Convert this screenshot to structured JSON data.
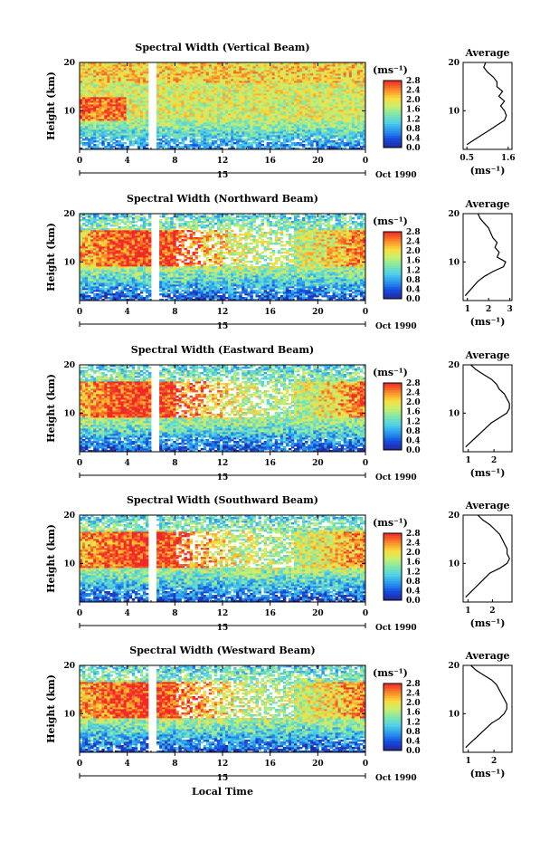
{
  "figure": {
    "xlabel": "Local Time",
    "ylabel": "Height (km)",
    "date_label": "Oct 1990",
    "day_label": "15",
    "colorbar_unit": "(ms⁻¹)",
    "colorbar_ticks": [
      "0.0",
      "0.4",
      "0.8",
      "1.2",
      "1.6",
      "2.0",
      "2.4",
      "2.8"
    ],
    "profile_title": "Average",
    "profile_unit": "(ms⁻¹)",
    "x_ticks": [
      "0",
      "4",
      "8",
      "12",
      "16",
      "20",
      "0"
    ],
    "y_ticks": [
      "10",
      "20"
    ]
  },
  "chart_data": [
    {
      "type": "heatmap",
      "title": "Spectral Width (Vertical Beam)",
      "xlim": [
        0,
        24
      ],
      "ylim": [
        2,
        20
      ],
      "clim": [
        0.0,
        2.8
      ],
      "data_gap_hours": [
        5.8,
        6.3
      ],
      "regime": "vertical",
      "profile": {
        "type": "line",
        "title": "Average",
        "xticks": [
          "0.5",
          "1.6"
        ],
        "xlim": [
          0.4,
          1.7
        ],
        "height_km": [
          3,
          4,
          5,
          6,
          7,
          8,
          9,
          10,
          11,
          12,
          13,
          14,
          15,
          16,
          17,
          18,
          19,
          20
        ],
        "width_ms": [
          0.5,
          0.7,
          0.9,
          1.1,
          1.3,
          1.5,
          1.55,
          1.5,
          1.4,
          1.5,
          1.35,
          1.45,
          1.3,
          1.3,
          1.2,
          1.05,
          0.95,
          1.0
        ]
      }
    },
    {
      "type": "heatmap",
      "title": "Spectral Width (Northward Beam)",
      "xlim": [
        0,
        24
      ],
      "ylim": [
        2,
        20
      ],
      "clim": [
        0.0,
        2.8
      ],
      "data_gap_hours": [
        6.0,
        6.5
      ],
      "regime": "oblique",
      "profile": {
        "type": "line",
        "title": "Average",
        "xticks": [
          "1",
          "2",
          "3"
        ],
        "xlim": [
          0.8,
          3.1
        ],
        "height_km": [
          3,
          4,
          5,
          6,
          7,
          8,
          9,
          10,
          11,
          12,
          13,
          14,
          15,
          16,
          17,
          18,
          19,
          20
        ],
        "width_ms": [
          0.9,
          1.1,
          1.3,
          1.5,
          1.8,
          2.2,
          2.7,
          2.8,
          2.4,
          2.5,
          2.3,
          2.4,
          2.2,
          2.1,
          2.0,
          1.8,
          1.6,
          1.5
        ]
      }
    },
    {
      "type": "heatmap",
      "title": "Spectral Width (Eastward Beam)",
      "xlim": [
        0,
        24
      ],
      "ylim": [
        2,
        20
      ],
      "clim": [
        0.0,
        2.8
      ],
      "data_gap_hours": [
        6.0,
        6.5
      ],
      "regime": "oblique",
      "profile": {
        "type": "line",
        "title": "Average",
        "xticks": [
          "1",
          "2"
        ],
        "xlim": [
          0.8,
          2.7
        ],
        "height_km": [
          3,
          4,
          5,
          6,
          7,
          8,
          9,
          10,
          11,
          12,
          13,
          14,
          15,
          16,
          17,
          18,
          19,
          20
        ],
        "width_ms": [
          0.9,
          1.1,
          1.3,
          1.5,
          1.7,
          1.9,
          2.2,
          2.5,
          2.6,
          2.6,
          2.5,
          2.4,
          2.2,
          2.1,
          1.9,
          1.6,
          1.3,
          1.1
        ]
      }
    },
    {
      "type": "heatmap",
      "title": "Spectral Width (Southward Beam)",
      "xlim": [
        0,
        24
      ],
      "ylim": [
        2,
        20
      ],
      "clim": [
        0.0,
        2.8
      ],
      "data_gap_hours": [
        5.9,
        6.4
      ],
      "regime": "oblique",
      "profile": {
        "type": "line",
        "title": "Average",
        "xticks": [
          "1",
          "2"
        ],
        "xlim": [
          0.8,
          2.8
        ],
        "height_km": [
          3,
          4,
          5,
          6,
          7,
          8,
          9,
          10,
          11,
          12,
          13,
          14,
          15,
          16,
          17,
          18,
          19,
          20
        ],
        "width_ms": [
          0.9,
          1.1,
          1.3,
          1.5,
          1.7,
          1.9,
          2.3,
          2.6,
          2.7,
          2.6,
          2.6,
          2.5,
          2.4,
          2.3,
          2.1,
          1.9,
          1.6,
          1.4
        ]
      }
    },
    {
      "type": "heatmap",
      "title": "Spectral Width (Westward Beam)",
      "xlim": [
        0,
        24
      ],
      "ylim": [
        2,
        20
      ],
      "clim": [
        0.0,
        2.8
      ],
      "data_gap_hours": [
        5.9,
        6.4
      ],
      "regime": "oblique",
      "profile": {
        "type": "line",
        "title": "Average",
        "xticks": [
          "1",
          "2"
        ],
        "xlim": [
          0.8,
          2.7
        ],
        "height_km": [
          3,
          4,
          5,
          6,
          7,
          8,
          9,
          10,
          11,
          12,
          13,
          14,
          15,
          16,
          17,
          18,
          19,
          20
        ],
        "width_ms": [
          0.9,
          1.1,
          1.3,
          1.5,
          1.7,
          1.9,
          2.2,
          2.4,
          2.5,
          2.5,
          2.4,
          2.3,
          2.2,
          2.1,
          1.9,
          1.6,
          1.3,
          1.1
        ]
      }
    }
  ]
}
